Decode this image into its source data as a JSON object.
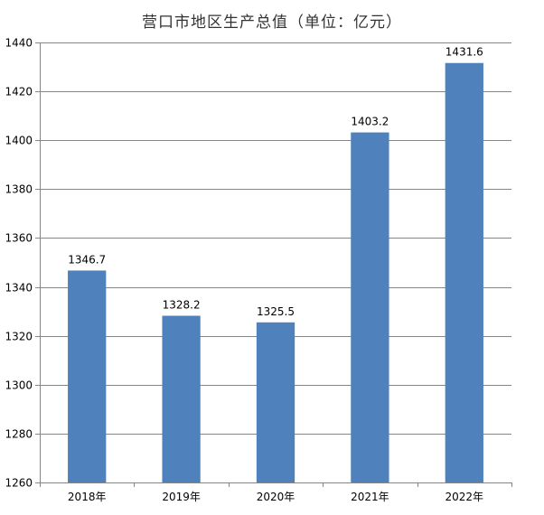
{
  "chart_data": {
    "type": "bar",
    "title": "营口市地区生产总值（单位：亿元）",
    "categories": [
      "2018年",
      "2019年",
      "2020年",
      "2021年",
      "2022年"
    ],
    "values": [
      1346.7,
      1328.2,
      1325.5,
      1403.2,
      1431.6
    ],
    "value_labels": [
      "1346.7",
      "1328.2",
      "1325.5",
      "1403.2",
      "1431.6"
    ],
    "ylim": [
      1260,
      1440
    ],
    "yticks": [
      1260,
      1280,
      1300,
      1320,
      1340,
      1360,
      1380,
      1400,
      1420,
      1440
    ],
    "xlabel": "",
    "ylabel": "",
    "grid": true,
    "bar_color": "#4F81BD"
  }
}
